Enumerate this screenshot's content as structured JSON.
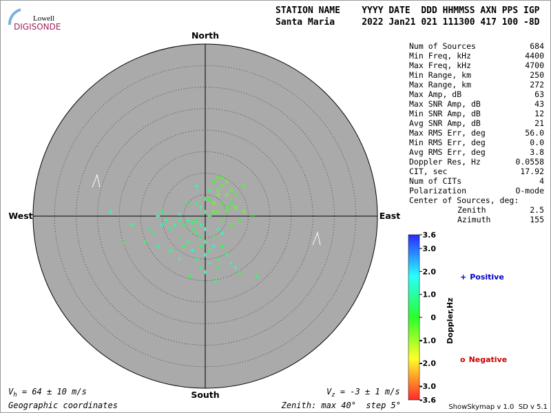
{
  "logo": {
    "top": "Lowell",
    "bottom": "DIGISONDE"
  },
  "header": {
    "columns": "STATION NAME    YYYY DATE  DDD HHMMSS AXN PPS IGP",
    "values": "Santa Maria     2022 Jan21 021 111300 417 100 -8D"
  },
  "stats": {
    "rows": [
      [
        "Num of Sources",
        "684"
      ],
      [
        "Min Freq, kHz",
        "4400"
      ],
      [
        "Max Freq, kHz",
        "4700"
      ],
      [
        "Min Range, km",
        "250"
      ],
      [
        "Max Range, km",
        "272"
      ],
      [
        "Max Amp, dB",
        "63"
      ],
      [
        "Max SNR Amp, dB",
        "43"
      ],
      [
        "Min SNR Amp, dB",
        "12"
      ],
      [
        "Avg SNR Amp, dB",
        "21"
      ],
      [
        "Max RMS Err, deg",
        "56.0"
      ],
      [
        "Min RMS Err, deg",
        "0.0"
      ],
      [
        "Avg RMS Err, deg",
        "3.8"
      ],
      [
        "Doppler Res, Hz",
        "0.0558"
      ],
      [
        "CIT, sec",
        "17.92"
      ],
      [
        "Num of CITs",
        "4"
      ],
      [
        "Polarization",
        "O-mode"
      ]
    ],
    "center_title": "Center of Sources, deg:",
    "center_rows": [
      [
        "Zenith",
        "2.5"
      ],
      [
        "Azimuth",
        "155"
      ]
    ]
  },
  "footer": {
    "vh_symbol": "V",
    "vh_sub": "h",
    "vh_text": " = 64 ± 10 m/s",
    "vz_symbol": "V",
    "vz_sub": "z",
    "vz_text": " = -3 ± 1 m/s",
    "coords": "Geographic coordinates",
    "zenith": "Zenith: max 40°  step 5°",
    "version": "ShowSkymap v 1.0  SD v 5.1"
  },
  "chart_data": {
    "type": "scatter",
    "compass": {
      "north": "North",
      "south": "South",
      "west": "West",
      "east": "East"
    },
    "rlim": [
      0,
      40
    ],
    "rticks": [
      5,
      10,
      15,
      20,
      25,
      30,
      35
    ],
    "colorbar": {
      "label": "Doppler,Hz",
      "clim": [
        -3.6,
        3.6
      ],
      "ticks": [
        3.6,
        {
          "value": 3,
          "label": "3.0"
        },
        {
          "value": 2,
          "label": "2.0"
        },
        {
          "value": 1,
          "label": "1.0"
        },
        0,
        {
          "value": -1,
          "label": "-1.0"
        },
        {
          "value": -2,
          "label": "-2.0"
        },
        {
          "value": -3,
          "label": "-3.0"
        },
        -3.6
      ]
    },
    "series": [
      {
        "name": "Positive",
        "marker": "+",
        "color": "#0000c8",
        "x": [
          -2,
          -3,
          -4,
          -5,
          -1,
          0,
          -2,
          -1,
          0,
          -1,
          1,
          0,
          -3,
          -6,
          -7,
          -8,
          -9,
          -10,
          -12,
          -14,
          -11,
          -6,
          -4,
          -3,
          -3.5,
          2.5,
          1,
          3,
          5,
          7,
          8,
          12,
          6,
          2,
          3,
          4,
          1,
          0,
          -1,
          0,
          1,
          -2,
          -4,
          -2,
          -6,
          -10,
          -17,
          -22,
          -19,
          -13,
          -11,
          -5,
          -2,
          2,
          4,
          -1,
          0,
          3,
          -8,
          -6
        ],
        "y": [
          -1,
          -1.5,
          -1,
          -2,
          -2,
          -3,
          -4,
          -5,
          -6,
          -7,
          -8,
          -9,
          -3,
          -1,
          -2,
          -3,
          -1,
          -2,
          -4,
          -6,
          -7,
          -5,
          -6,
          -8,
          -14,
          -15,
          -11,
          -10,
          -9,
          -12,
          -13,
          -14,
          -11,
          -5,
          -3,
          -4,
          0,
          1,
          2,
          4,
          6,
          7,
          3,
          3,
          0.5,
          1,
          -2,
          1,
          -6,
          -3,
          0,
          -7,
          -10,
          -7,
          -7,
          -12,
          -13,
          -12,
          -8,
          -10
        ],
        "doppler": [
          0.3,
          0.6,
          1.0,
          0.4,
          0.8,
          1.2,
          0.3,
          0.6,
          1.0,
          0.4,
          0.8,
          1.2,
          0.3,
          0.6,
          1.0,
          0.4,
          0.8,
          1.2,
          0.3,
          0.6,
          1.0,
          0.4,
          0.8,
          1.2,
          0.3,
          0.6,
          1.0,
          0.4,
          0.8,
          1.2,
          0.3,
          0.6,
          1.0,
          0.4,
          0.8,
          1.2,
          0.3,
          0.6,
          1.0,
          0.4,
          0.8,
          1.2,
          0.3,
          0.6,
          1.0,
          0.4,
          0.8,
          1.2,
          0.3,
          0.6,
          1.0,
          0.4,
          0.8,
          1.2,
          0.3,
          0.6,
          1.0,
          0.4,
          0.8,
          1.2
        ]
      },
      {
        "name": "Negative",
        "marker": "o",
        "color": "#c80000",
        "x": [
          2,
          3,
          4,
          5,
          6,
          4,
          3,
          5,
          7,
          8,
          6,
          5,
          3,
          2,
          1,
          4,
          6,
          9,
          3,
          5,
          7,
          2,
          4,
          9,
          11
        ],
        "y": [
          8,
          6,
          7,
          5,
          3,
          3,
          1,
          1,
          2,
          -1,
          -2,
          8,
          9,
          3,
          4,
          -1,
          6,
          7,
          5,
          2,
          5,
          1,
          9,
          1,
          0
        ],
        "doppler": [
          -0.2,
          -0.4,
          -0.3,
          -0.5,
          -0.1,
          -0.2,
          -0.4,
          -0.3,
          -0.5,
          -0.1,
          -0.2,
          -0.4,
          -0.3,
          -0.5,
          -0.1,
          -0.2,
          -0.4,
          -0.3,
          -0.5,
          -0.1,
          -0.2,
          -0.4,
          -0.3,
          -0.5,
          -0.1
        ]
      }
    ]
  }
}
